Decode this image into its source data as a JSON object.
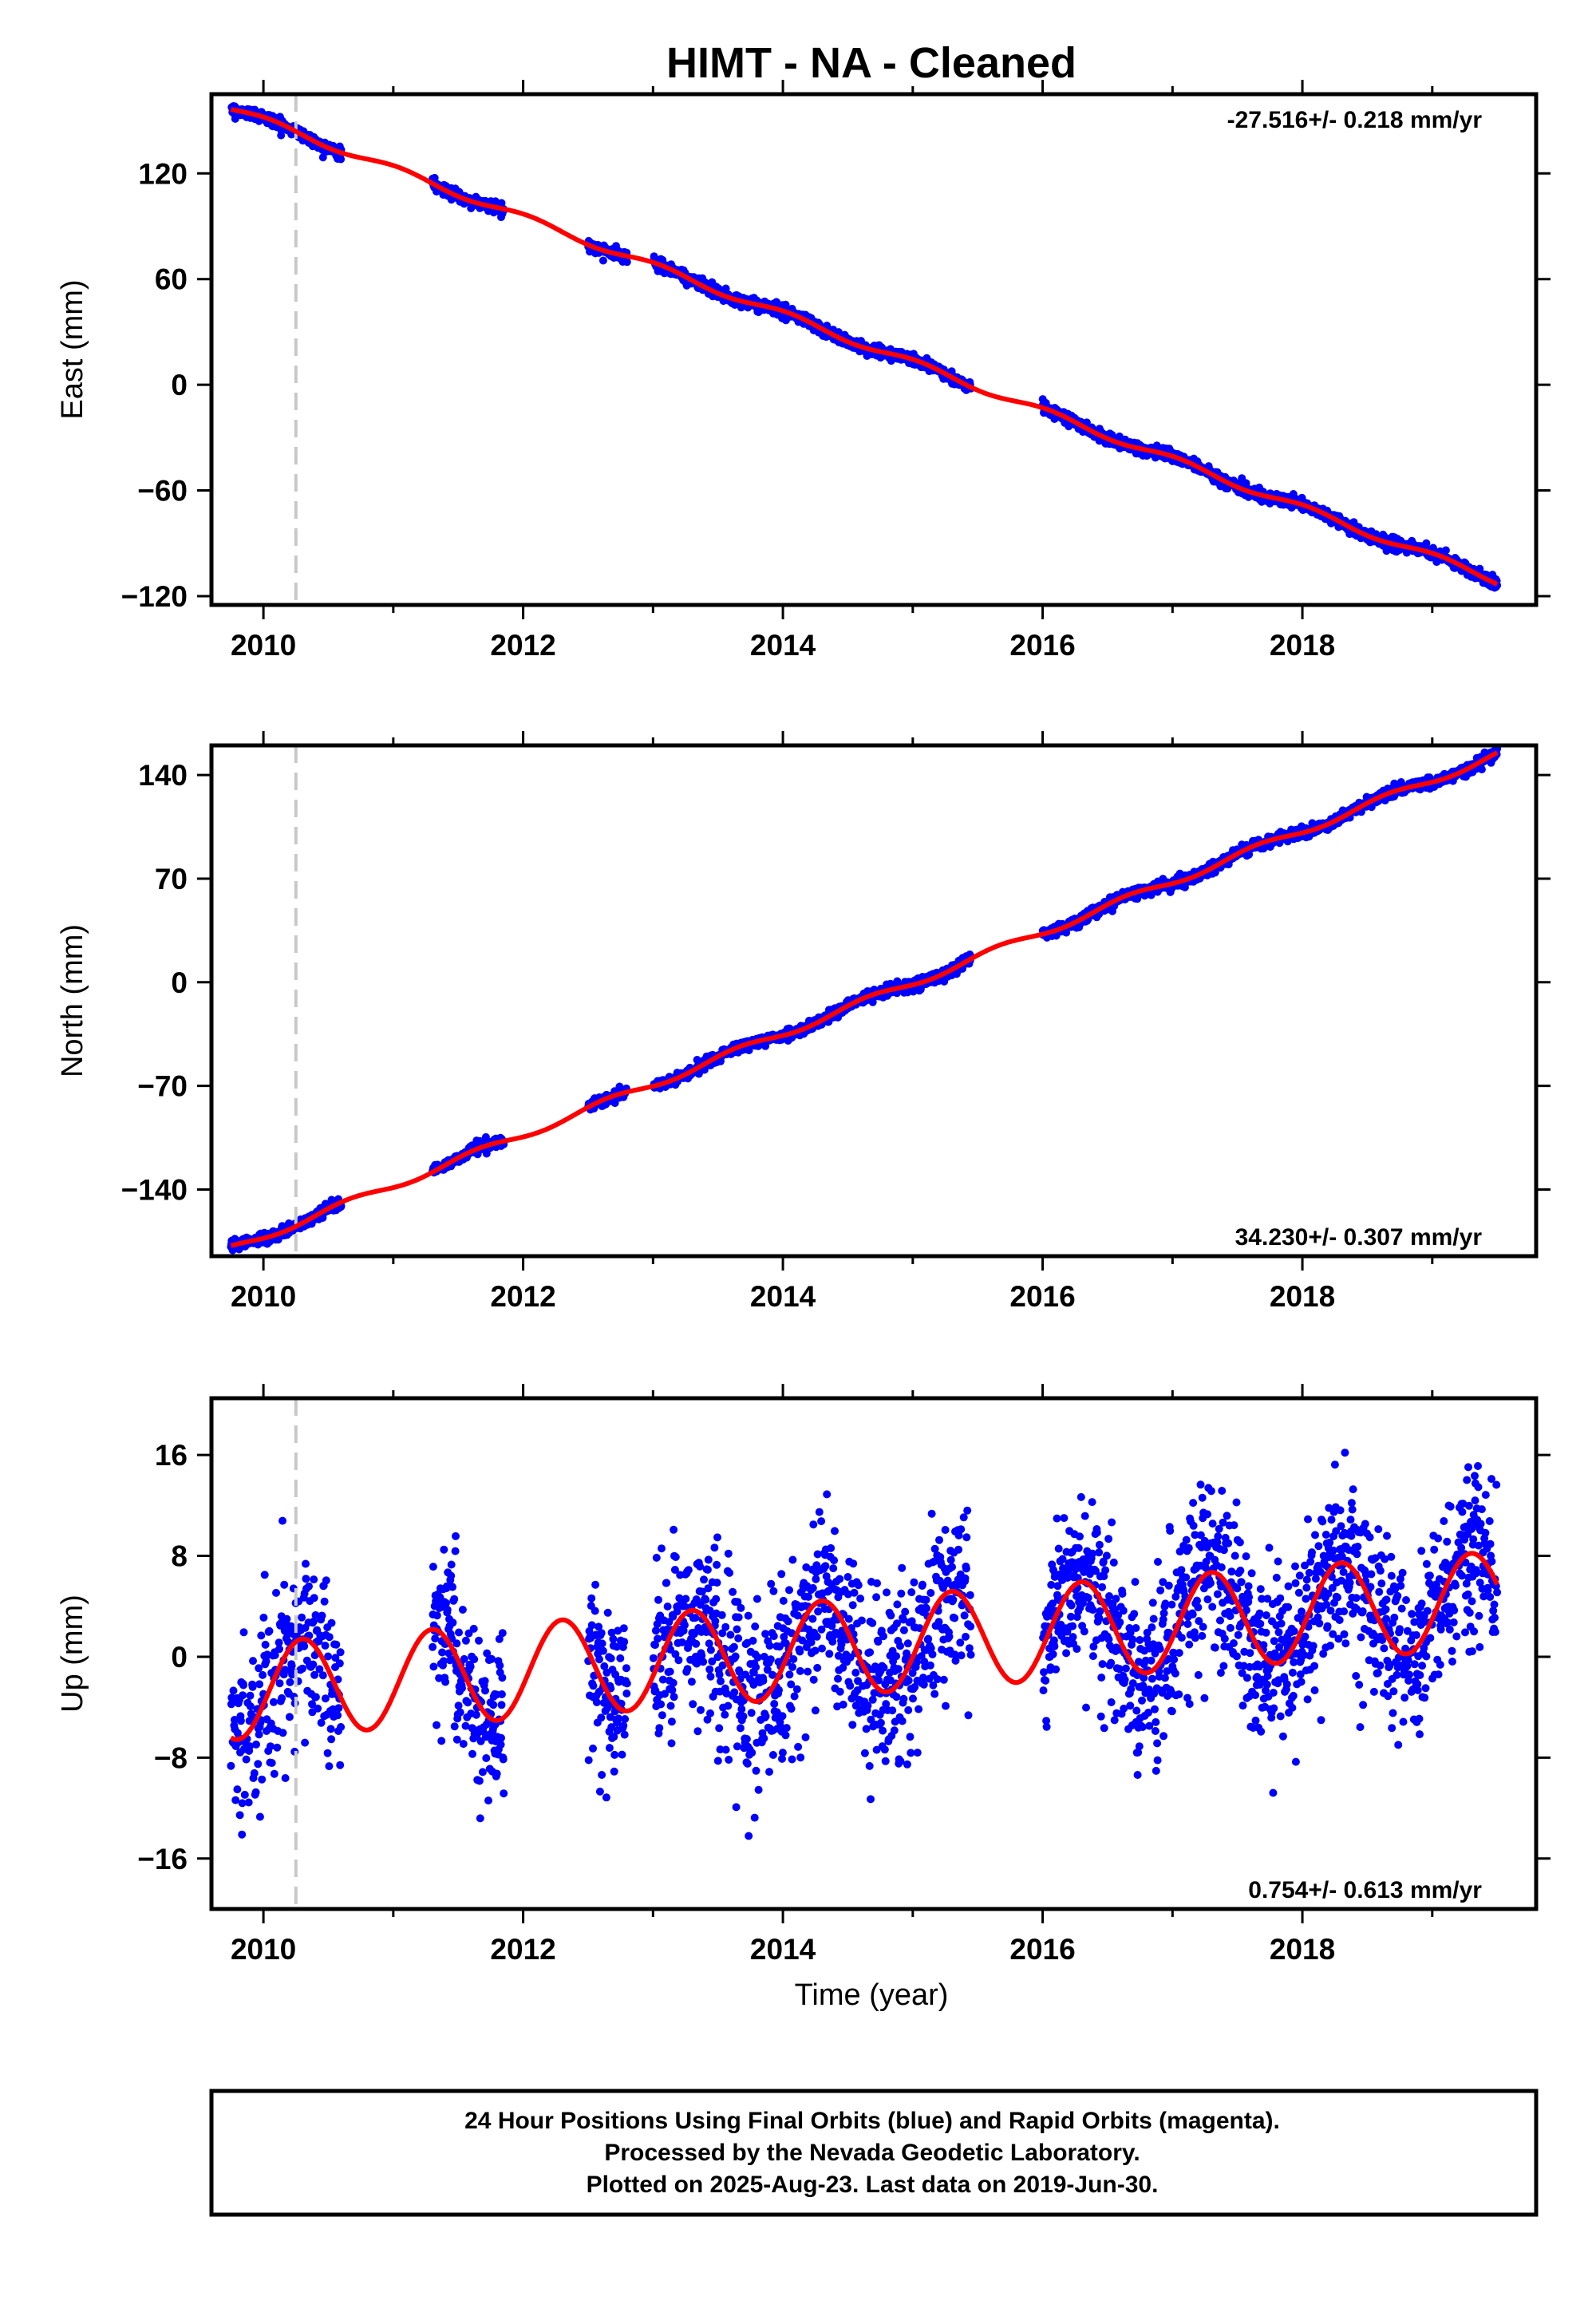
{
  "title": "HIMT  - NA - Cleaned",
  "xlabel": "Time (year)",
  "colors": {
    "data_points": "#0000ff",
    "model_curve": "#ff0000",
    "event_line": "#c8c8c8",
    "frame": "#000000"
  },
  "chart_data": [
    {
      "type": "scatter",
      "ylabel": "East (mm)",
      "rate": "-27.516+/- 0.218 mm/yr",
      "xlim": [
        2009.6,
        2019.8
      ],
      "ylim": [
        -125,
        165
      ],
      "x_ticks": [
        2010,
        2012,
        2014,
        2016,
        2018
      ],
      "x_tick_labels": [
        "2010",
        "2012",
        "2014",
        "2016",
        "2018"
      ],
      "y_ticks": [
        120,
        60,
        0,
        -60,
        -120
      ],
      "y_tick_labels": [
        "120",
        "60",
        "0",
        "−60",
        "−120"
      ],
      "event_line_x": 2010.25,
      "trend": {
        "x0": 2009.75,
        "y0": 157,
        "rate": -27.516
      },
      "seasonal": {
        "amp": 2.0,
        "phase": 0.2
      },
      "noise_sd": 1.6,
      "data_gaps": [
        [
          2010.6,
          2011.3
        ],
        [
          2011.85,
          2012.5
        ],
        [
          2012.8,
          2013.0
        ],
        [
          2015.45,
          2016.0
        ]
      ],
      "x_range": [
        2009.75,
        2019.5
      ]
    },
    {
      "type": "scatter",
      "ylabel": "North (mm)",
      "rate": "34.230+/- 0.307 mm/yr",
      "xlim": [
        2009.6,
        2019.8
      ],
      "ylim": [
        -185,
        160
      ],
      "x_ticks": [
        2010,
        2012,
        2014,
        2016,
        2018
      ],
      "x_tick_labels": [
        "2010",
        "2012",
        "2014",
        "2016",
        "2018"
      ],
      "y_ticks": [
        140,
        70,
        0,
        -70,
        -140
      ],
      "y_tick_labels": [
        "140",
        "70",
        "0",
        "−70",
        "−140"
      ],
      "event_line_x": 2010.25,
      "trend": {
        "x0": 2009.75,
        "y0": -180,
        "rate": 34.23
      },
      "seasonal": {
        "amp": 2.5,
        "phase": 0.6
      },
      "noise_sd": 1.8,
      "data_gaps": [
        [
          2010.6,
          2011.3
        ],
        [
          2011.85,
          2012.5
        ],
        [
          2012.8,
          2013.0
        ],
        [
          2015.45,
          2016.0
        ]
      ],
      "x_range": [
        2009.75,
        2019.5
      ]
    },
    {
      "type": "scatter",
      "ylabel": "Up (mm)",
      "rate": "0.754+/- 0.613 mm/yr",
      "xlim": [
        2009.6,
        2019.8
      ],
      "ylim": [
        -20,
        20.5
      ],
      "x_ticks": [
        2010,
        2012,
        2014,
        2016,
        2018
      ],
      "x_tick_labels": [
        "2010",
        "2012",
        "2014",
        "2016",
        "2018"
      ],
      "y_ticks": [
        16,
        8,
        0,
        -8,
        -16
      ],
      "y_tick_labels": [
        "16",
        "8",
        "0",
        "−8",
        "−16"
      ],
      "event_line_x": 2010.25,
      "trend": {
        "x0": 2009.75,
        "y0": -2.8,
        "rate": 0.754
      },
      "seasonal": {
        "amp": 3.8,
        "phase": 0.95
      },
      "noise_sd": 3.4,
      "data_gaps": [
        [
          2010.6,
          2011.3
        ],
        [
          2011.85,
          2012.5
        ],
        [
          2012.8,
          2013.0
        ],
        [
          2015.45,
          2016.0
        ]
      ],
      "x_range": [
        2009.75,
        2019.5
      ]
    }
  ],
  "caption": {
    "line1": "24 Hour Positions Using Final Orbits (blue) and Rapid Orbits (magenta).",
    "line2": "Processed by the Nevada Geodetic Laboratory.",
    "line3": "Plotted on 2025-Aug-23. Last data on 2019-Jun-30."
  }
}
